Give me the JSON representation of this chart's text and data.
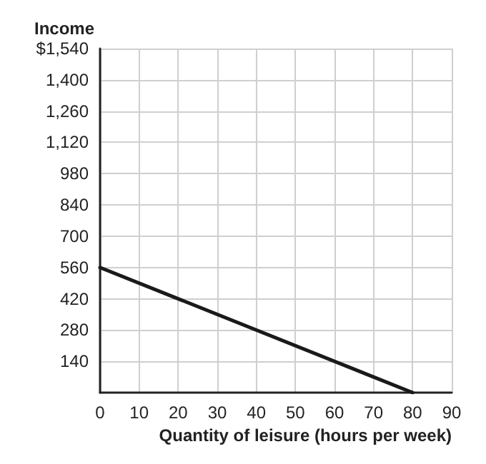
{
  "chart_data": {
    "type": "line",
    "xlabel": "Quantity of leisure (hours per week)",
    "ylabel": "Income",
    "x": [
      0,
      80
    ],
    "series": [
      {
        "color": "#1a1a1a",
        "values": [
          560,
          0
        ]
      }
    ],
    "xlim": [
      0,
      90
    ],
    "xticks": [
      0,
      10,
      20,
      30,
      40,
      50,
      60,
      70,
      80,
      90
    ],
    "ylim": [
      0,
      1540
    ],
    "yticks": [
      {
        "value": 140,
        "label": "140"
      },
      {
        "value": 280,
        "label": "280"
      },
      {
        "value": 420,
        "label": "420"
      },
      {
        "value": 560,
        "label": "560"
      },
      {
        "value": 700,
        "label": "700"
      },
      {
        "value": 840,
        "label": "840"
      },
      {
        "value": 980,
        "label": "980"
      },
      {
        "value": 1120,
        "label": "1,120"
      },
      {
        "value": 1260,
        "label": "1,260"
      },
      {
        "value": 1400,
        "label": "1,400"
      },
      {
        "value": 1540,
        "label": "$1,540"
      }
    ],
    "grid": true,
    "marker": "none",
    "line_style": "solid"
  }
}
